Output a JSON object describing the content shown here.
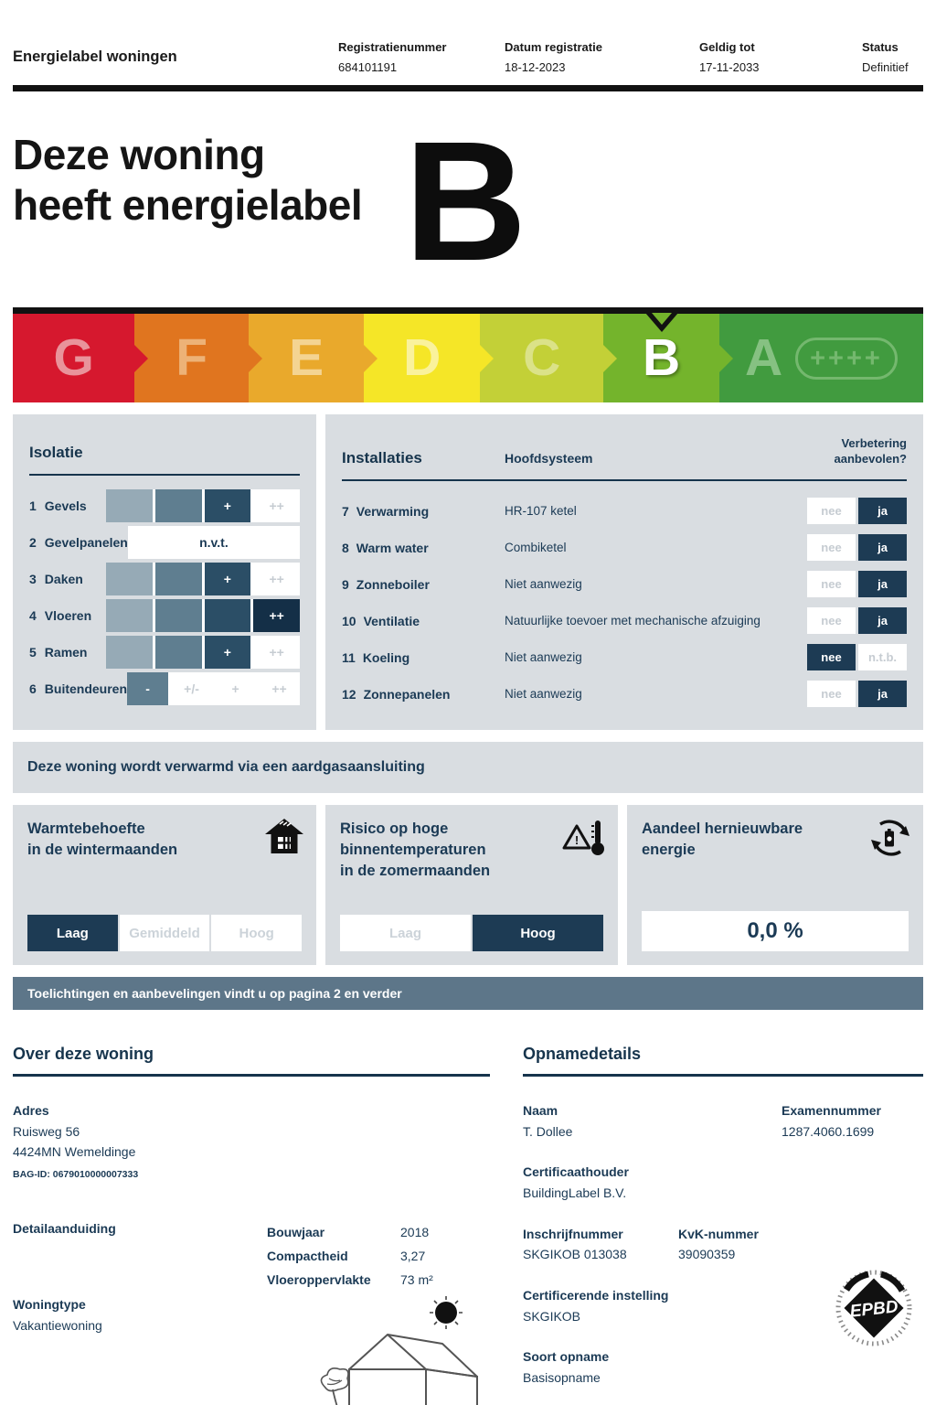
{
  "header": {
    "title": "Energielabel woningen",
    "fields": [
      {
        "label": "Registratienummer",
        "value": "684101191"
      },
      {
        "label": "Datum registratie",
        "value": "18-12-2023"
      },
      {
        "label": "Geldig tot",
        "value": "17-11-2033"
      },
      {
        "label": "Status",
        "value": "Definitief"
      }
    ]
  },
  "hero": {
    "line1": "Deze woning",
    "line2": "heeft energielabel",
    "label": "B"
  },
  "scale": {
    "selected": "B",
    "notch_left": "71.3%",
    "segments": [
      {
        "letter": "G",
        "color": "#d6182e",
        "letter_color": "#e9939b",
        "width": 13.4
      },
      {
        "letter": "F",
        "color": "#e0751f",
        "letter_color": "#edb277",
        "width": 12.5
      },
      {
        "letter": "E",
        "color": "#e9a92c",
        "letter_color": "#f4d492",
        "width": 12.7
      },
      {
        "letter": "D",
        "color": "#f5e627",
        "letter_color": "#faf29c",
        "width": 12.7
      },
      {
        "letter": "C",
        "color": "#c3d037",
        "letter_color": "#dbe288",
        "width": 13.6
      },
      {
        "letter": "B",
        "color": "#74b42c",
        "letter_color": "#ffffff",
        "width": 12.7
      },
      {
        "letter": "A",
        "color": "#419b3f",
        "letter_color": "#86c182",
        "width": 22.4,
        "badge": "++++",
        "badge_color": "#74b86e"
      }
    ]
  },
  "isolatie": {
    "title": "Isolatie",
    "rows": [
      {
        "num": "1",
        "label": "Gevels",
        "cells": [
          {
            "tone": "light",
            "text": ""
          },
          {
            "tone": "medium",
            "text": ""
          },
          {
            "tone": "dark",
            "text": "+"
          },
          {
            "tone": "white",
            "text": "++",
            "faint": true
          }
        ]
      },
      {
        "num": "2",
        "label": "Gevelpanelen",
        "nvt": "n.v.t."
      },
      {
        "num": "3",
        "label": "Daken",
        "cells": [
          {
            "tone": "light",
            "text": ""
          },
          {
            "tone": "medium",
            "text": ""
          },
          {
            "tone": "dark",
            "text": "+"
          },
          {
            "tone": "white",
            "text": "++",
            "faint": true
          }
        ]
      },
      {
        "num": "4",
        "label": "Vloeren",
        "cells": [
          {
            "tone": "light",
            "text": ""
          },
          {
            "tone": "medium",
            "text": ""
          },
          {
            "tone": "dark",
            "text": ""
          },
          {
            "tone": "darkest",
            "text": "++"
          }
        ]
      },
      {
        "num": "5",
        "label": "Ramen",
        "cells": [
          {
            "tone": "light",
            "text": ""
          },
          {
            "tone": "medium",
            "text": ""
          },
          {
            "tone": "dark",
            "text": "+"
          },
          {
            "tone": "white",
            "text": "++",
            "faint": true
          }
        ]
      },
      {
        "num": "6",
        "label": "Buitendeuren",
        "cells": [
          {
            "tone": "medium",
            "text": "-"
          },
          {
            "tone": "white",
            "text": "+/-",
            "faint": true
          },
          {
            "tone": "white",
            "text": "+",
            "faint": true
          },
          {
            "tone": "white",
            "text": "++",
            "faint": true
          }
        ]
      }
    ]
  },
  "installaties": {
    "title": "Installaties",
    "col_system": "Hoofdsysteem",
    "col_advice_line1": "Verbetering",
    "col_advice_line2": "aanbevolen?",
    "rows": [
      {
        "num": "7",
        "label": "Verwarming",
        "system": "HR-107 ketel",
        "options": [
          {
            "label": "nee"
          },
          {
            "label": "ja",
            "selected": true
          }
        ]
      },
      {
        "num": "8",
        "label": "Warm water",
        "system": "Combiketel",
        "options": [
          {
            "label": "nee"
          },
          {
            "label": "ja",
            "selected": true
          }
        ]
      },
      {
        "num": "9",
        "label": "Zonneboiler",
        "system": "Niet aanwezig",
        "options": [
          {
            "label": "nee"
          },
          {
            "label": "ja",
            "selected": true
          }
        ]
      },
      {
        "num": "10",
        "label": "Ventilatie",
        "system": "Natuurlijke toevoer met mechanische afzuiging",
        "options": [
          {
            "label": "nee"
          },
          {
            "label": "ja",
            "selected": true
          }
        ]
      },
      {
        "num": "11",
        "label": "Koeling",
        "system": "Niet aanwezig",
        "options": [
          {
            "label": "nee",
            "selected": true
          },
          {
            "label": "n.t.b."
          }
        ]
      },
      {
        "num": "12",
        "label": "Zonnepanelen",
        "system": "Niet aanwezig",
        "options": [
          {
            "label": "nee"
          },
          {
            "label": "ja",
            "selected": true
          }
        ]
      }
    ]
  },
  "gas_banner": "Deze woning wordt verwarmd via een aardgasaansluiting",
  "panels": [
    {
      "line1": "Warmtebehoefte",
      "line2": "in de wintermaanden",
      "icon": "house-icon",
      "options": [
        {
          "label": "Laag",
          "selected": true
        },
        {
          "label": "Gemiddeld"
        },
        {
          "label": "Hoog"
        }
      ]
    },
    {
      "line1": "Risico op hoge",
      "line2": "binnentemperaturen",
      "line3": "in de zomermaanden",
      "icon": "overheating-icon",
      "options": [
        {
          "label": "Laag"
        },
        {
          "label": "Hoog",
          "selected": true
        }
      ]
    },
    {
      "line1": "Aandeel hernieuwbare",
      "line2": "energie",
      "icon": "renewable-energy-icon",
      "value": "0,0 %"
    }
  ],
  "note_banner": "Toelichtingen en aanbevelingen vindt u op pagina 2 en verder",
  "about": {
    "title": "Over deze woning",
    "adres_label": "Adres",
    "street": "Ruisweg 56",
    "city": "4424MN Wemeldinge",
    "bag": "BAG-ID: 0679010000007333",
    "detail_label": "Detailaanduiding",
    "facts": [
      {
        "label": "Bouwjaar",
        "value": "2018"
      },
      {
        "label": "Compactheid",
        "value": "3,27"
      },
      {
        "label": "Vloeroppervlakte",
        "value": "73 m²"
      }
    ],
    "type_label": "Woningtype",
    "type_value": "Vakantiewoning"
  },
  "opname": {
    "title": "Opnamedetails",
    "naam_label": "Naam",
    "naam": "T. Dollee",
    "exam_label": "Examennummer",
    "exam": "1287.4060.1699",
    "cert_label": "Certificaathouder",
    "cert": "BuildingLabel B.V.",
    "inschrijf_label": "Inschrijfnummer",
    "inschrijf": "SKGIKOB 013038",
    "kvk_label": "KvK-nummer",
    "kvk": "39090359",
    "instelling_label": "Certificerende instelling",
    "instelling": "SKGIKOB",
    "soort_label": "Soort opname",
    "soort": "Basisopname",
    "stamp": "EPBD"
  },
  "colors": {
    "navy": "#1d3b54",
    "panel_bg": "#d9dde1",
    "banner_slate": "#5d7689",
    "scale_bar_black": "#121212",
    "unselected_text": "#ccd3d9",
    "selected_green": "#74b42c"
  }
}
